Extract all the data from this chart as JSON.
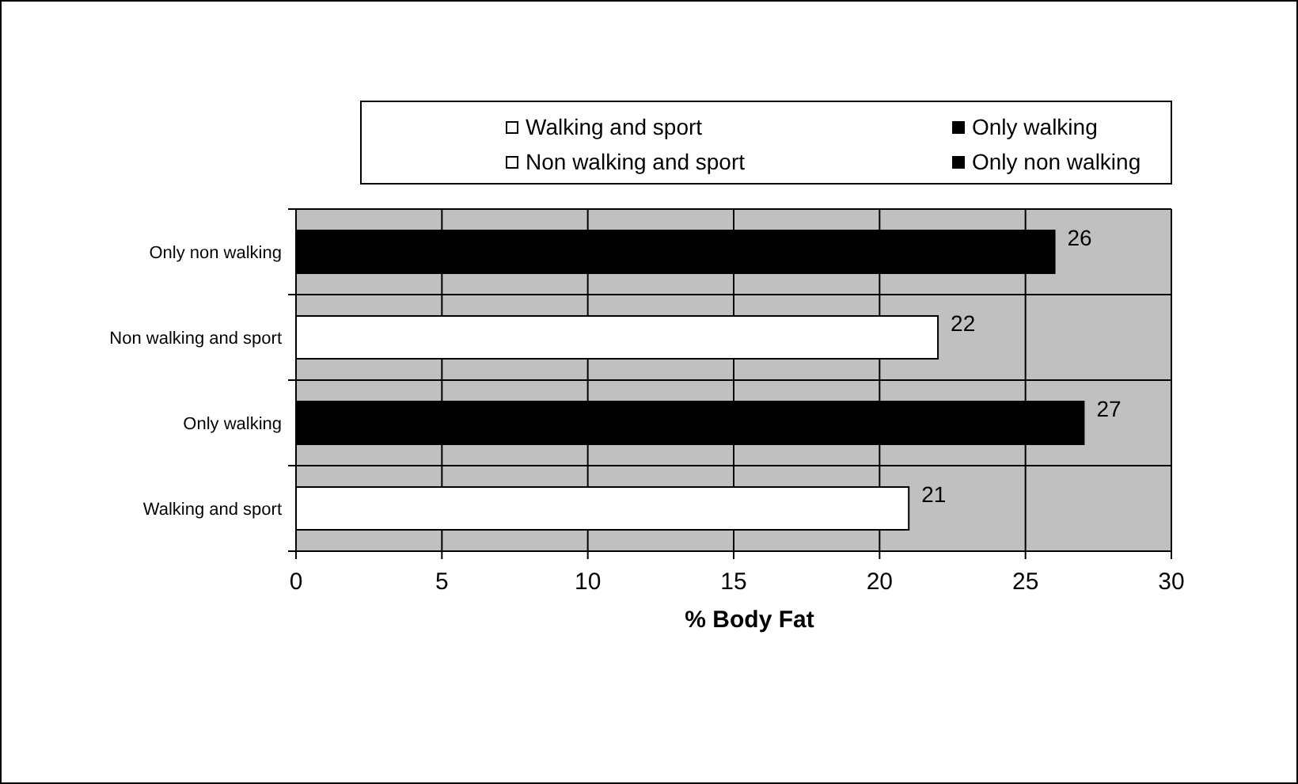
{
  "chart_data": {
    "type": "bar",
    "orientation": "horizontal",
    "xlabel": "% Body Fat",
    "categories": [
      "Only non walking",
      "Non walking and sport",
      "Only walking",
      "Walking and sport"
    ],
    "series": [
      {
        "name": "Walking and sport",
        "color": "#ffffff",
        "values": [
          null,
          null,
          null,
          21
        ]
      },
      {
        "name": "Only walking",
        "color": "#000000",
        "values": [
          null,
          null,
          27,
          null
        ]
      },
      {
        "name": "Non walking and sport",
        "color": "#ffffff",
        "values": [
          null,
          22,
          null,
          null
        ]
      },
      {
        "name": "Only non walking",
        "color": "#000000",
        "values": [
          26,
          null,
          null,
          null
        ]
      }
    ],
    "xlim": [
      0,
      30
    ],
    "xticks": [
      0,
      5,
      10,
      15,
      20,
      25,
      30
    ],
    "grid": true,
    "data_labels": true,
    "legend": "top"
  }
}
